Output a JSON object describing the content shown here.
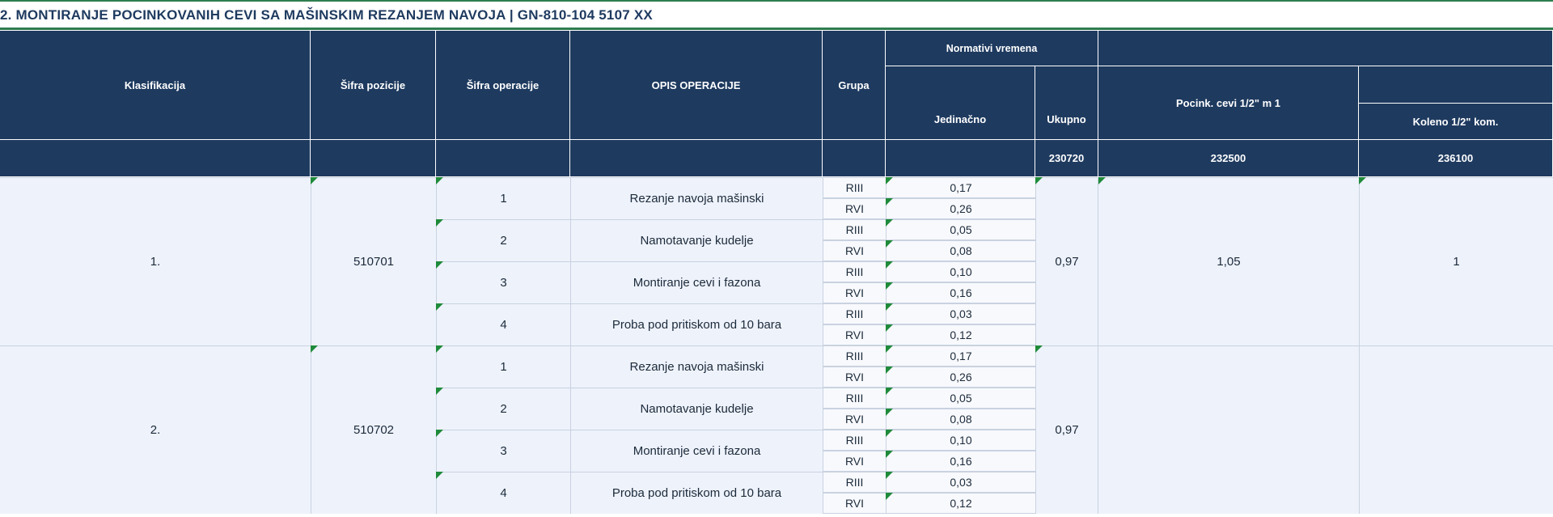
{
  "title": "2. MONTIRANJE POCINKOVANIH CEVI SA MAŠINSKIM REZANJEM NAVOJA   |   GN-810-104  5107 XX",
  "headers": {
    "klasifikacija": "Klasifikacija",
    "sifra_pozicije": "Šifra pozicije",
    "sifra_operacije": "Šifra operacije",
    "opis_operacije": "OPIS OPERACIJE",
    "grupa": "Grupa",
    "normativi_vremena": "Normativi vremena",
    "jedinacno": "Jedinačno",
    "ukupno": "Ukupno",
    "pocink_cevi": "Pocink. cevi 1/2\" m 1",
    "koleno": "Koleno 1/2\" kom."
  },
  "codes": {
    "ukupno": "230720",
    "pocink_cevi": "232500",
    "koleno": "236100"
  },
  "groups": [
    {
      "klasifikacija": "1.",
      "sifra_pozicije": "510701",
      "ukupno": "0,97",
      "pocink_cevi": "1,05",
      "koleno": "1",
      "operations": [
        {
          "sifra": "1",
          "opis": "Rezanje navoja mašinski",
          "rows": [
            {
              "grupa": "RIII",
              "jedinacno": "0,17"
            },
            {
              "grupa": "RVI",
              "jedinacno": "0,26"
            }
          ]
        },
        {
          "sifra": "2",
          "opis": "Namotavanje kudelje",
          "rows": [
            {
              "grupa": "RIII",
              "jedinacno": "0,05"
            },
            {
              "grupa": "RVI",
              "jedinacno": "0,08"
            }
          ]
        },
        {
          "sifra": "3",
          "opis": "Montiranje cevi i fazona",
          "rows": [
            {
              "grupa": "RIII",
              "jedinacno": "0,10"
            },
            {
              "grupa": "RVI",
              "jedinacno": "0,16"
            }
          ]
        },
        {
          "sifra": "4",
          "opis": "Proba pod pritiskom od 10 bara",
          "rows": [
            {
              "grupa": "RIII",
              "jedinacno": "0,03"
            },
            {
              "grupa": "RVI",
              "jedinacno": "0,12"
            }
          ]
        }
      ]
    },
    {
      "klasifikacija": "2.",
      "sifra_pozicije": "510702",
      "ukupno": "0,97",
      "pocink_cevi": "",
      "koleno": "",
      "operations": [
        {
          "sifra": "1",
          "opis": "Rezanje navoja mašinski",
          "rows": [
            {
              "grupa": "RIII",
              "jedinacno": "0,17"
            },
            {
              "grupa": "RVI",
              "jedinacno": "0,26"
            }
          ]
        },
        {
          "sifra": "2",
          "opis": "Namotavanje kudelje",
          "rows": [
            {
              "grupa": "RIII",
              "jedinacno": "0,05"
            },
            {
              "grupa": "RVI",
              "jedinacno": "0,08"
            }
          ]
        },
        {
          "sifra": "3",
          "opis": "Montiranje cevi i fazona",
          "rows": [
            {
              "grupa": "RIII",
              "jedinacno": "0,10"
            },
            {
              "grupa": "RVI",
              "jedinacno": "0,16"
            }
          ]
        },
        {
          "sifra": "4",
          "opis": "Proba pod pritiskom od 10 bara",
          "rows": [
            {
              "grupa": "RIII",
              "jedinacno": "0,03"
            },
            {
              "grupa": "RVI",
              "jedinacno": "0,12"
            }
          ]
        }
      ]
    }
  ],
  "colors": {
    "header_bg": "#1e3a5f",
    "row_bg": "#eef2fb",
    "marker": "#1f8a3a",
    "title_rule": "#2e7d4f"
  }
}
